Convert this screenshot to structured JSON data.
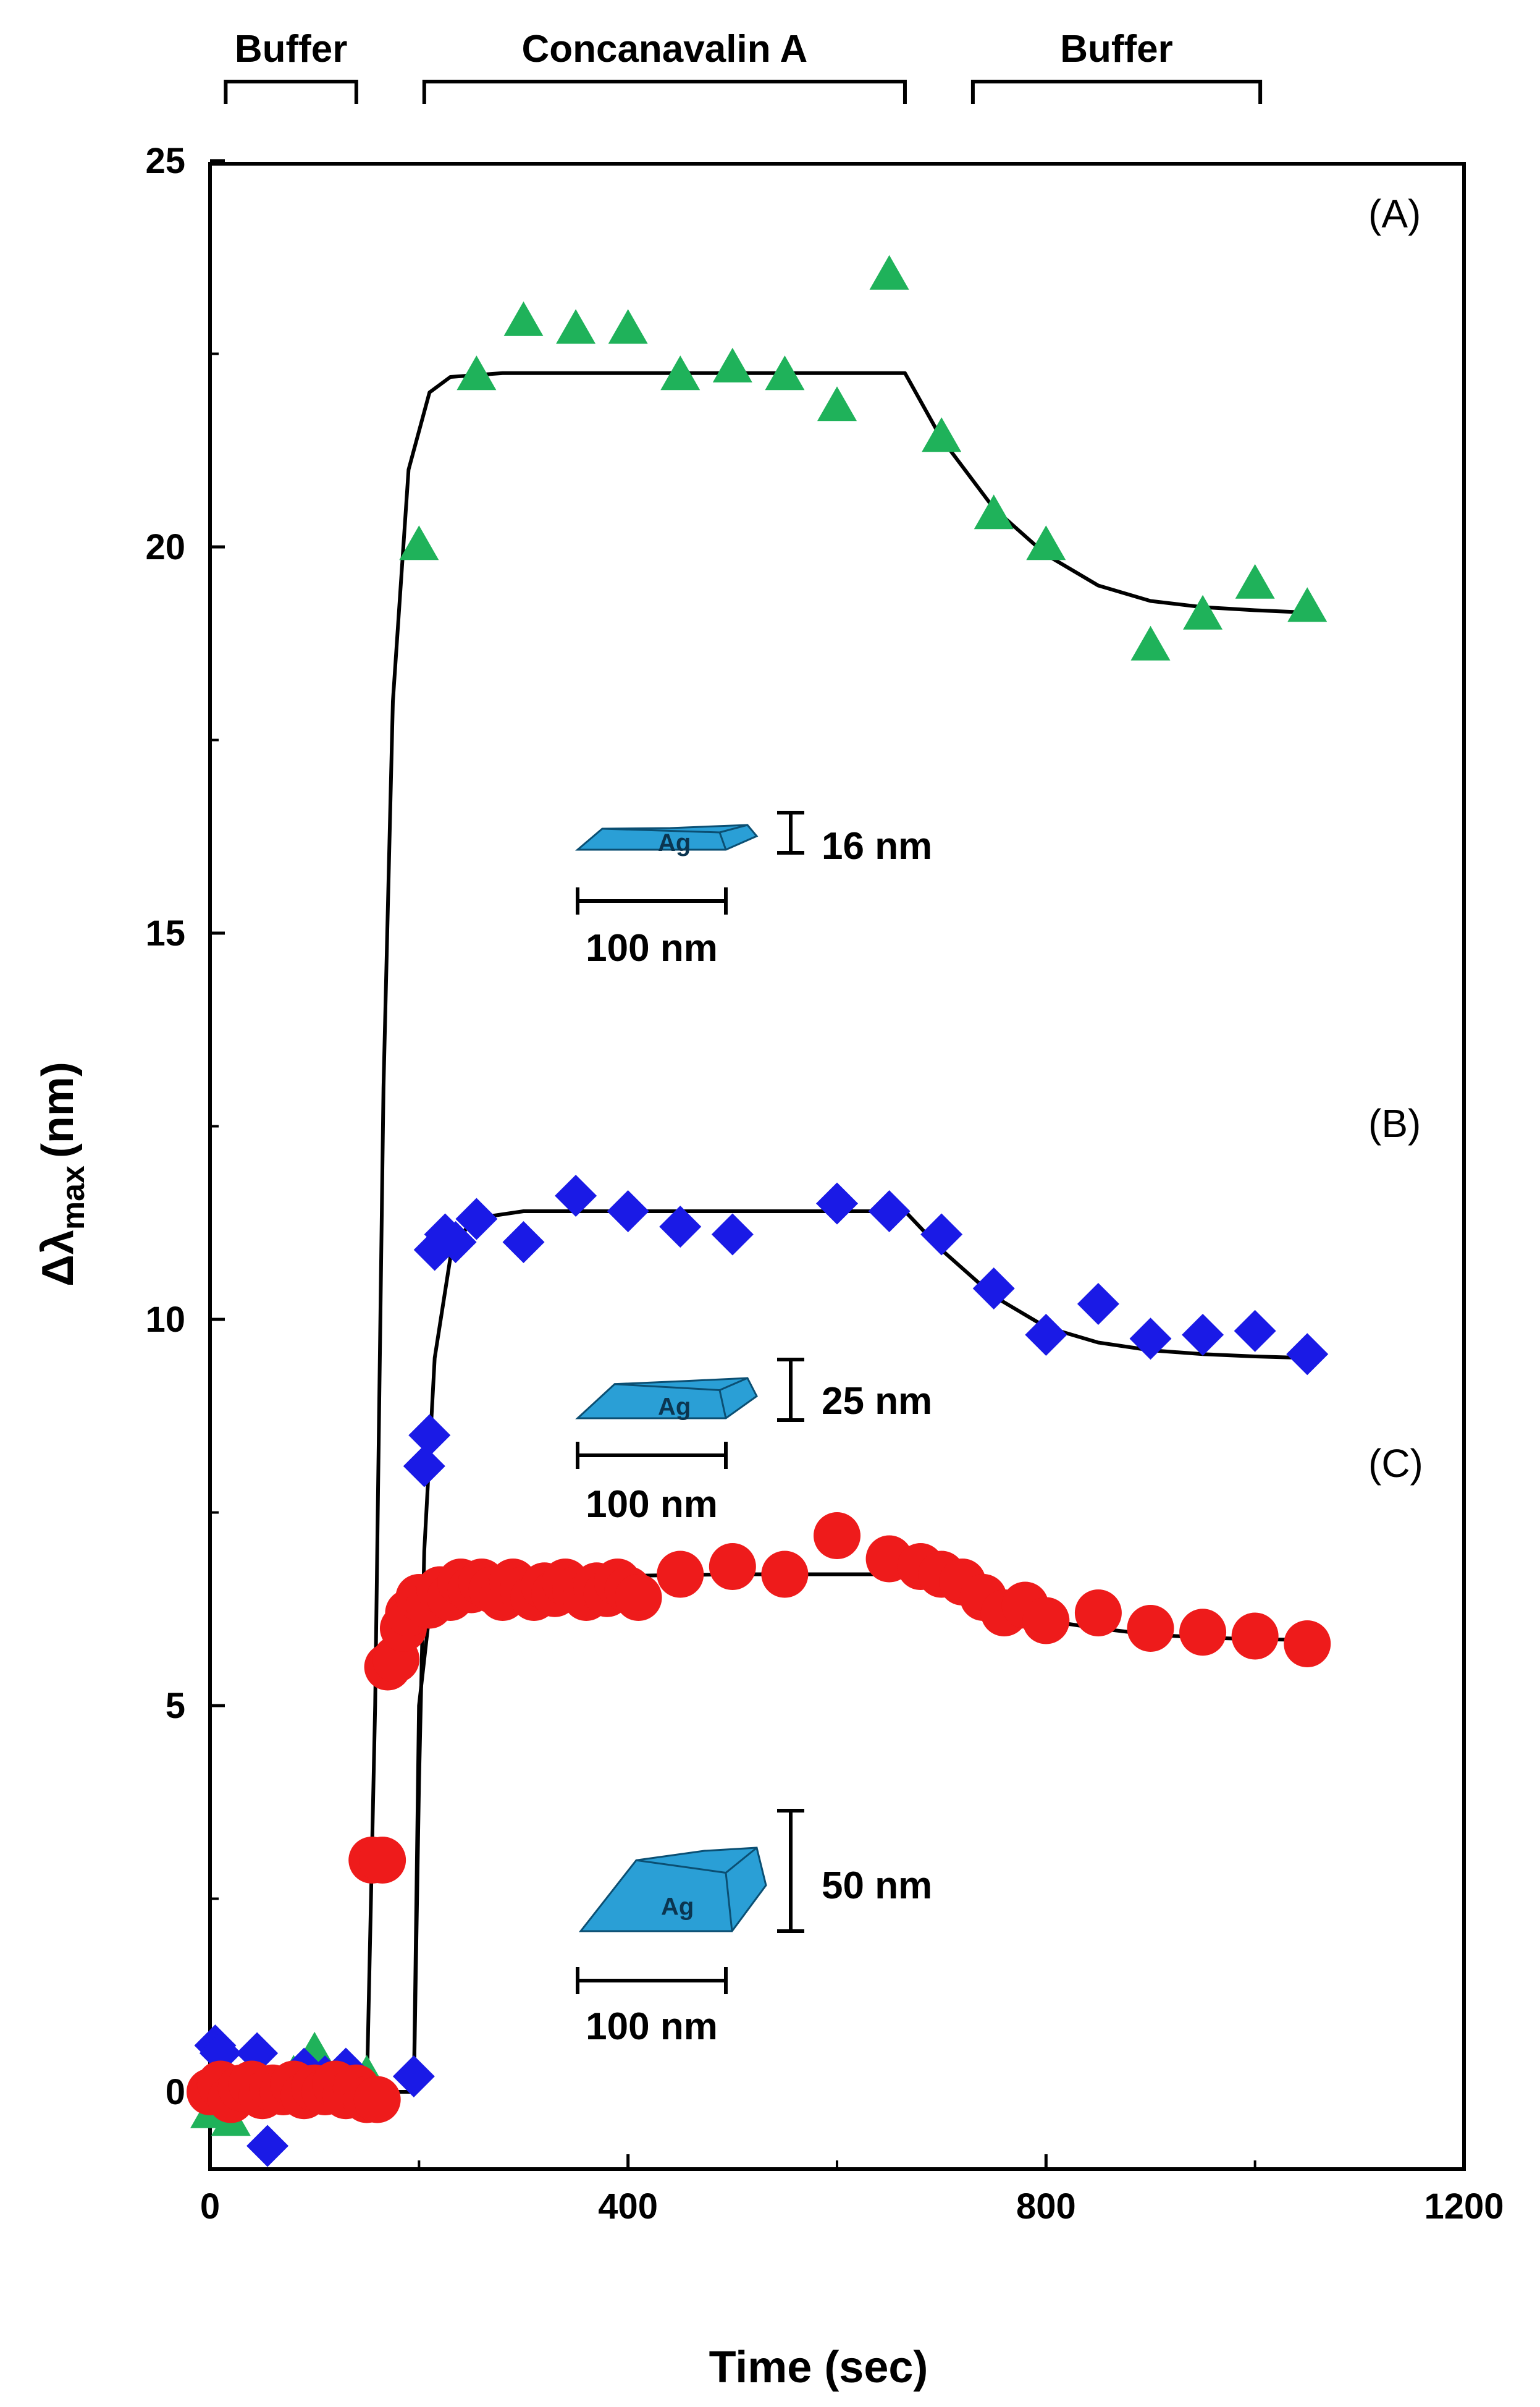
{
  "chart_data": {
    "type": "scatter",
    "xlabel": "Time (sec)",
    "ylabel_main": "Δλ",
    "ylabel_sub": "max",
    "ylabel_unit": "(nm)",
    "xlim": [
      0,
      1200
    ],
    "ylim": [
      -1,
      25
    ],
    "x_ticks": [
      0,
      400,
      800,
      1200
    ],
    "x_tick_labels": [
      "0",
      "400",
      "800",
      "1200"
    ],
    "y_ticks": [
      0,
      5,
      10,
      15,
      20,
      25
    ],
    "y_tick_labels": [
      "0",
      "5",
      "10",
      "15",
      "20",
      "25"
    ],
    "phases": [
      {
        "label": "Buffer",
        "start": 15,
        "end": 140
      },
      {
        "label": "Concanavalin A",
        "start": 205,
        "end": 665
      },
      {
        "label": "Buffer",
        "start": 730,
        "end": 1005
      }
    ],
    "series": [
      {
        "name": "(A)",
        "marker": "triangle",
        "color": "#1fb25a",
        "points": [
          [
            0,
            -0.3
          ],
          [
            20,
            -0.4
          ],
          [
            50,
            0.1
          ],
          [
            80,
            0.2
          ],
          [
            100,
            0.5
          ],
          [
            150,
            0.2
          ],
          [
            200,
            20
          ],
          [
            255,
            22.2
          ],
          [
            300,
            22.9
          ],
          [
            350,
            22.8
          ],
          [
            400,
            22.8
          ],
          [
            450,
            22.2
          ],
          [
            500,
            22.3
          ],
          [
            550,
            22.2
          ],
          [
            600,
            21.8
          ],
          [
            650,
            23.5
          ],
          [
            700,
            21.4
          ],
          [
            750,
            20.4
          ],
          [
            800,
            20
          ],
          [
            900,
            18.7
          ],
          [
            950,
            19.1
          ],
          [
            1000,
            19.5
          ],
          [
            1050,
            19.2
          ]
        ],
        "fit": [
          [
            0,
            0
          ],
          [
            150,
            0
          ],
          [
            158,
            5
          ],
          [
            166,
            13
          ],
          [
            175,
            18
          ],
          [
            190,
            21
          ],
          [
            210,
            22
          ],
          [
            230,
            22.2
          ],
          [
            280,
            22.25
          ],
          [
            400,
            22.25
          ],
          [
            500,
            22.25
          ],
          [
            600,
            22.25
          ],
          [
            665,
            22.25
          ],
          [
            700,
            21.4
          ],
          [
            750,
            20.5
          ],
          [
            800,
            19.9
          ],
          [
            850,
            19.5
          ],
          [
            900,
            19.3
          ],
          [
            950,
            19.22
          ],
          [
            1000,
            19.18
          ],
          [
            1050,
            19.15
          ]
        ]
      },
      {
        "name": "(B)",
        "marker": "diamond",
        "color": "#1a1ae6",
        "points": [
          [
            5,
            0.6
          ],
          [
            10,
            0.5
          ],
          [
            45,
            0.5
          ],
          [
            55,
            -0.7
          ],
          [
            70,
            0
          ],
          [
            90,
            0.3
          ],
          [
            110,
            0.2
          ],
          [
            130,
            0.3
          ],
          [
            195,
            0.2
          ],
          [
            205,
            8.1
          ],
          [
            210,
            8.5
          ],
          [
            215,
            10.9
          ],
          [
            225,
            11.1
          ],
          [
            235,
            11
          ],
          [
            255,
            11.3
          ],
          [
            300,
            11
          ],
          [
            350,
            11.6
          ],
          [
            400,
            11.4
          ],
          [
            450,
            11.2
          ],
          [
            500,
            11.1
          ],
          [
            600,
            11.5
          ],
          [
            650,
            11.4
          ],
          [
            700,
            11.1
          ],
          [
            750,
            10.4
          ],
          [
            800,
            9.8
          ],
          [
            850,
            10.2
          ],
          [
            900,
            9.75
          ],
          [
            950,
            9.8
          ],
          [
            1000,
            9.85
          ],
          [
            1050,
            9.55
          ]
        ],
        "fit": [
          [
            0,
            0
          ],
          [
            195,
            0
          ],
          [
            200,
            4
          ],
          [
            205,
            7
          ],
          [
            215,
            9.5
          ],
          [
            230,
            10.8
          ],
          [
            250,
            11.3
          ],
          [
            300,
            11.4
          ],
          [
            400,
            11.4
          ],
          [
            500,
            11.4
          ],
          [
            600,
            11.4
          ],
          [
            665,
            11.4
          ],
          [
            700,
            10.9
          ],
          [
            750,
            10.3
          ],
          [
            800,
            9.9
          ],
          [
            850,
            9.7
          ],
          [
            900,
            9.6
          ],
          [
            950,
            9.55
          ],
          [
            1000,
            9.52
          ],
          [
            1050,
            9.5
          ]
        ]
      },
      {
        "name": "(C)",
        "marker": "circle",
        "color": "#ee1b1b",
        "points": [
          [
            0,
            0
          ],
          [
            10,
            0.1
          ],
          [
            20,
            -0.1
          ],
          [
            30,
            0.05
          ],
          [
            40,
            0.1
          ],
          [
            50,
            -0.05
          ],
          [
            60,
            0.05
          ],
          [
            70,
            0
          ],
          [
            80,
            0.1
          ],
          [
            90,
            -0.05
          ],
          [
            100,
            0.05
          ],
          [
            110,
            0
          ],
          [
            120,
            0.1
          ],
          [
            130,
            -0.05
          ],
          [
            140,
            0.05
          ],
          [
            150,
            -0.1
          ],
          [
            160,
            -0.1
          ],
          [
            155,
            3
          ],
          [
            165,
            3
          ],
          [
            170,
            5.5
          ],
          [
            178,
            5.6
          ],
          [
            185,
            6
          ],
          [
            190,
            6.2
          ],
          [
            200,
            6.4
          ],
          [
            210,
            6.3
          ],
          [
            220,
            6.5
          ],
          [
            230,
            6.4
          ],
          [
            240,
            6.6
          ],
          [
            250,
            6.5
          ],
          [
            260,
            6.6
          ],
          [
            270,
            6.5
          ],
          [
            280,
            6.4
          ],
          [
            290,
            6.6
          ],
          [
            300,
            6.5
          ],
          [
            310,
            6.4
          ],
          [
            320,
            6.55
          ],
          [
            330,
            6.45
          ],
          [
            340,
            6.6
          ],
          [
            350,
            6.5
          ],
          [
            360,
            6.4
          ],
          [
            370,
            6.55
          ],
          [
            380,
            6.45
          ],
          [
            390,
            6.6
          ],
          [
            400,
            6.5
          ],
          [
            410,
            6.4
          ],
          [
            450,
            6.7
          ],
          [
            500,
            6.8
          ],
          [
            550,
            6.7
          ],
          [
            600,
            7.2
          ],
          [
            650,
            6.9
          ],
          [
            680,
            6.8
          ],
          [
            700,
            6.7
          ],
          [
            720,
            6.6
          ],
          [
            740,
            6.4
          ],
          [
            760,
            6.2
          ],
          [
            780,
            6.3
          ],
          [
            800,
            6.1
          ],
          [
            850,
            6.2
          ],
          [
            900,
            6
          ],
          [
            950,
            5.95
          ],
          [
            1000,
            5.9
          ],
          [
            1050,
            5.8
          ]
        ],
        "fit": [
          [
            0,
            0
          ],
          [
            195,
            0
          ],
          [
            200,
            5
          ],
          [
            210,
            6.2
          ],
          [
            225,
            6.5
          ],
          [
            250,
            6.62
          ],
          [
            300,
            6.65
          ],
          [
            400,
            6.68
          ],
          [
            500,
            6.7
          ],
          [
            600,
            6.7
          ],
          [
            690,
            6.7
          ],
          [
            720,
            6.5
          ],
          [
            760,
            6.25
          ],
          [
            800,
            6.1
          ],
          [
            850,
            6
          ],
          [
            900,
            5.92
          ],
          [
            950,
            5.88
          ],
          [
            1000,
            5.86
          ],
          [
            1050,
            5.85
          ]
        ]
      }
    ],
    "panel_labels": [
      "(A)",
      "(B)",
      "(C)"
    ],
    "annotations": [
      {
        "metal": "Ag",
        "height": "16 nm",
        "width": "100 nm"
      },
      {
        "metal": "Ag",
        "height": "25 nm",
        "width": "100 nm"
      },
      {
        "metal": "Ag",
        "height": "50 nm",
        "width": "100 nm"
      }
    ],
    "nanoprism_color": "#2a9fd6"
  }
}
